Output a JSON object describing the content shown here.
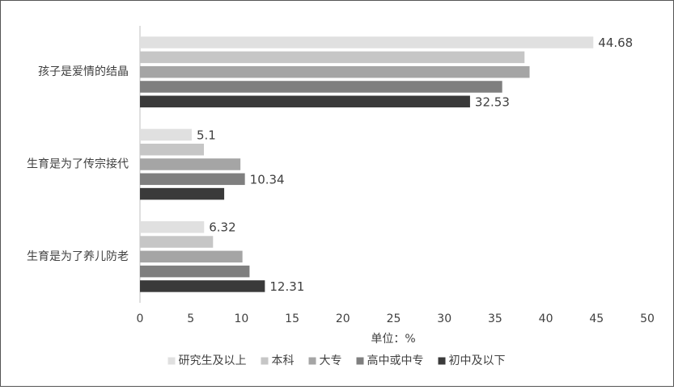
{
  "chart_data": {
    "type": "hbar",
    "categories": [
      "孩子是爱情的结晶",
      "生育是为了传宗接代",
      "生育是为了养儿防老"
    ],
    "series": [
      {
        "name": "研究生及以上",
        "color": "#e0e0e0",
        "values": [
          44.68,
          5.1,
          6.32
        ],
        "value_labels": [
          "44.68",
          "5.1",
          "6.32"
        ]
      },
      {
        "name": "本科",
        "color": "#c6c6c6",
        "values": [
          37.9,
          6.3,
          7.2
        ],
        "value_labels": [
          null,
          null,
          null
        ]
      },
      {
        "name": "大专",
        "color": "#a5a5a5",
        "values": [
          38.4,
          9.9,
          10.1
        ],
        "value_labels": [
          null,
          null,
          null
        ]
      },
      {
        "name": "高中或中专",
        "color": "#7f7f7f",
        "values": [
          35.7,
          10.34,
          10.8
        ],
        "value_labels": [
          null,
          "10.34",
          null
        ]
      },
      {
        "name": "初中及以下",
        "color": "#3a3a3a",
        "values": [
          32.53,
          8.3,
          12.31
        ],
        "value_labels": [
          "32.53",
          null,
          "12.31"
        ]
      }
    ],
    "xlabel": "单位：%",
    "xlim": [
      0,
      50
    ],
    "xticks": [
      0,
      5,
      10,
      15,
      20,
      25,
      30,
      35,
      40,
      45,
      50
    ],
    "grid": false,
    "legend": "bottom"
  }
}
